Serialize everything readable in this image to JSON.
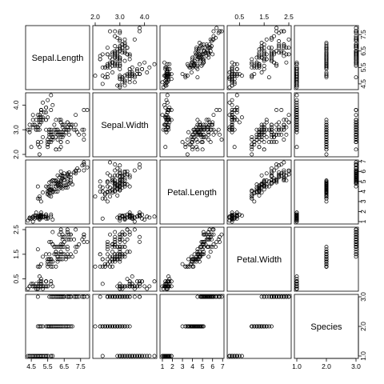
{
  "chart_data": {
    "type": "scatter",
    "variables": [
      "Sepal.Length",
      "Sepal.Width",
      "Petal.Length",
      "Petal.Width",
      "Species"
    ],
    "ranges": [
      [
        4.3,
        7.9
      ],
      [
        2.0,
        4.4
      ],
      [
        1.0,
        6.9
      ],
      [
        0.1,
        2.5
      ],
      [
        1,
        3
      ]
    ],
    "ticks": [
      [
        "4.5",
        "5.5",
        "6.5",
        "7.5"
      ],
      [
        "2.0",
        "3.0",
        "4.0"
      ],
      [
        "1",
        "2",
        "3",
        "4",
        "5",
        "6",
        "7"
      ],
      [
        "0.5",
        "1.5",
        "2.5"
      ],
      [
        "1.0",
        "2.0",
        "3.0"
      ]
    ],
    "tick_values": [
      [
        4.5,
        5.5,
        6.5,
        7.5
      ],
      [
        2.0,
        3.0,
        4.0
      ],
      [
        1,
        2,
        3,
        4,
        5,
        6,
        7
      ],
      [
        0.5,
        1.5,
        2.5
      ],
      [
        1.0,
        2.0,
        3.0
      ]
    ],
    "data": [
      [
        5.1,
        3.5,
        1.4,
        0.2,
        1
      ],
      [
        4.9,
        3.0,
        1.4,
        0.2,
        1
      ],
      [
        4.7,
        3.2,
        1.3,
        0.2,
        1
      ],
      [
        4.6,
        3.1,
        1.5,
        0.2,
        1
      ],
      [
        5.0,
        3.6,
        1.4,
        0.2,
        1
      ],
      [
        5.4,
        3.9,
        1.7,
        0.4,
        1
      ],
      [
        4.6,
        3.4,
        1.4,
        0.3,
        1
      ],
      [
        5.0,
        3.4,
        1.5,
        0.2,
        1
      ],
      [
        4.4,
        2.9,
        1.4,
        0.2,
        1
      ],
      [
        4.9,
        3.1,
        1.5,
        0.1,
        1
      ],
      [
        5.4,
        3.7,
        1.5,
        0.2,
        1
      ],
      [
        4.8,
        3.4,
        1.6,
        0.2,
        1
      ],
      [
        4.8,
        3.0,
        1.4,
        0.1,
        1
      ],
      [
        4.3,
        3.0,
        1.1,
        0.1,
        1
      ],
      [
        5.8,
        4.0,
        1.2,
        0.2,
        1
      ],
      [
        5.7,
        4.4,
        1.5,
        0.4,
        1
      ],
      [
        5.4,
        3.9,
        1.3,
        0.4,
        1
      ],
      [
        5.1,
        3.5,
        1.4,
        0.3,
        1
      ],
      [
        5.7,
        3.8,
        1.7,
        0.3,
        1
      ],
      [
        5.1,
        3.8,
        1.5,
        0.3,
        1
      ],
      [
        5.4,
        3.4,
        1.7,
        0.2,
        1
      ],
      [
        5.1,
        3.7,
        1.5,
        0.4,
        1
      ],
      [
        4.6,
        3.6,
        1.0,
        0.2,
        1
      ],
      [
        5.1,
        3.3,
        1.7,
        0.5,
        1
      ],
      [
        4.8,
        3.4,
        1.9,
        0.2,
        1
      ],
      [
        5.0,
        3.0,
        1.6,
        0.2,
        1
      ],
      [
        5.0,
        3.4,
        1.6,
        0.4,
        1
      ],
      [
        5.2,
        3.5,
        1.5,
        0.2,
        1
      ],
      [
        5.2,
        3.4,
        1.4,
        0.2,
        1
      ],
      [
        4.7,
        3.2,
        1.6,
        0.2,
        1
      ],
      [
        4.8,
        3.1,
        1.6,
        0.2,
        1
      ],
      [
        5.4,
        3.4,
        1.5,
        0.4,
        1
      ],
      [
        5.2,
        4.1,
        1.5,
        0.1,
        1
      ],
      [
        5.5,
        4.2,
        1.4,
        0.2,
        1
      ],
      [
        4.9,
        3.1,
        1.5,
        0.2,
        1
      ],
      [
        5.0,
        3.2,
        1.2,
        0.2,
        1
      ],
      [
        5.5,
        3.5,
        1.3,
        0.2,
        1
      ],
      [
        4.9,
        3.6,
        1.4,
        0.1,
        1
      ],
      [
        4.4,
        3.0,
        1.3,
        0.2,
        1
      ],
      [
        5.1,
        3.4,
        1.5,
        0.2,
        1
      ],
      [
        5.0,
        3.5,
        1.3,
        0.3,
        1
      ],
      [
        4.5,
        2.3,
        1.3,
        0.3,
        1
      ],
      [
        4.4,
        3.2,
        1.3,
        0.2,
        1
      ],
      [
        5.0,
        3.5,
        1.6,
        0.6,
        1
      ],
      [
        5.1,
        3.8,
        1.9,
        0.4,
        1
      ],
      [
        4.8,
        3.0,
        1.4,
        0.3,
        1
      ],
      [
        5.1,
        3.8,
        1.6,
        0.2,
        1
      ],
      [
        4.6,
        3.2,
        1.4,
        0.2,
        1
      ],
      [
        5.3,
        3.7,
        1.5,
        0.2,
        1
      ],
      [
        5.0,
        3.3,
        1.4,
        0.2,
        1
      ],
      [
        7.0,
        3.2,
        4.7,
        1.4,
        2
      ],
      [
        6.4,
        3.2,
        4.5,
        1.5,
        2
      ],
      [
        6.9,
        3.1,
        4.9,
        1.5,
        2
      ],
      [
        5.5,
        2.3,
        4.0,
        1.3,
        2
      ],
      [
        6.5,
        2.8,
        4.6,
        1.5,
        2
      ],
      [
        5.7,
        2.8,
        4.5,
        1.3,
        2
      ],
      [
        6.3,
        3.3,
        4.7,
        1.6,
        2
      ],
      [
        4.9,
        2.4,
        3.3,
        1.0,
        2
      ],
      [
        6.6,
        2.9,
        4.6,
        1.3,
        2
      ],
      [
        5.2,
        2.7,
        3.9,
        1.4,
        2
      ],
      [
        5.0,
        2.0,
        3.5,
        1.0,
        2
      ],
      [
        5.9,
        3.0,
        4.2,
        1.5,
        2
      ],
      [
        6.0,
        2.2,
        4.0,
        1.0,
        2
      ],
      [
        6.1,
        2.9,
        4.7,
        1.4,
        2
      ],
      [
        5.6,
        2.9,
        3.6,
        1.3,
        2
      ],
      [
        6.7,
        3.1,
        4.4,
        1.4,
        2
      ],
      [
        5.6,
        3.0,
        4.5,
        1.5,
        2
      ],
      [
        5.8,
        2.7,
        4.1,
        1.0,
        2
      ],
      [
        6.2,
        2.2,
        4.5,
        1.5,
        2
      ],
      [
        5.6,
        2.5,
        3.9,
        1.1,
        2
      ],
      [
        5.9,
        3.2,
        4.8,
        1.8,
        2
      ],
      [
        6.1,
        2.8,
        4.0,
        1.3,
        2
      ],
      [
        6.3,
        2.5,
        4.9,
        1.5,
        2
      ],
      [
        6.1,
        2.8,
        4.7,
        1.2,
        2
      ],
      [
        6.4,
        2.9,
        4.3,
        1.3,
        2
      ],
      [
        6.6,
        3.0,
        4.4,
        1.4,
        2
      ],
      [
        6.8,
        2.8,
        4.8,
        1.4,
        2
      ],
      [
        6.7,
        3.0,
        5.0,
        1.7,
        2
      ],
      [
        6.0,
        2.9,
        4.5,
        1.5,
        2
      ],
      [
        5.7,
        2.6,
        3.5,
        1.0,
        2
      ],
      [
        5.5,
        2.4,
        3.8,
        1.1,
        2
      ],
      [
        5.5,
        2.4,
        3.7,
        1.0,
        2
      ],
      [
        5.8,
        2.7,
        3.9,
        1.2,
        2
      ],
      [
        6.0,
        2.7,
        5.1,
        1.6,
        2
      ],
      [
        5.4,
        3.0,
        4.5,
        1.5,
        2
      ],
      [
        6.0,
        3.4,
        4.5,
        1.6,
        2
      ],
      [
        6.7,
        3.1,
        4.7,
        1.5,
        2
      ],
      [
        6.3,
        2.3,
        4.4,
        1.3,
        2
      ],
      [
        5.6,
        3.0,
        4.1,
        1.3,
        2
      ],
      [
        5.5,
        2.5,
        4.0,
        1.3,
        2
      ],
      [
        5.5,
        2.6,
        4.4,
        1.2,
        2
      ],
      [
        6.1,
        3.0,
        4.6,
        1.4,
        2
      ],
      [
        5.8,
        2.6,
        4.0,
        1.2,
        2
      ],
      [
        5.0,
        2.3,
        3.3,
        1.0,
        2
      ],
      [
        5.6,
        2.7,
        4.2,
        1.3,
        2
      ],
      [
        5.7,
        3.0,
        4.2,
        1.2,
        2
      ],
      [
        5.7,
        2.9,
        4.2,
        1.3,
        2
      ],
      [
        6.2,
        2.9,
        4.3,
        1.3,
        2
      ],
      [
        5.1,
        2.5,
        3.0,
        1.1,
        2
      ],
      [
        5.7,
        2.8,
        4.1,
        1.3,
        2
      ],
      [
        6.3,
        3.3,
        6.0,
        2.5,
        3
      ],
      [
        5.8,
        2.7,
        5.1,
        1.9,
        3
      ],
      [
        7.1,
        3.0,
        5.9,
        2.1,
        3
      ],
      [
        6.3,
        2.9,
        5.6,
        1.8,
        3
      ],
      [
        6.5,
        3.0,
        5.8,
        2.2,
        3
      ],
      [
        7.6,
        3.0,
        6.6,
        2.1,
        3
      ],
      [
        4.9,
        2.5,
        4.5,
        1.7,
        3
      ],
      [
        7.3,
        2.9,
        6.3,
        1.8,
        3
      ],
      [
        6.7,
        2.5,
        5.8,
        1.8,
        3
      ],
      [
        7.2,
        3.6,
        6.1,
        2.5,
        3
      ],
      [
        6.5,
        3.2,
        5.1,
        2.0,
        3
      ],
      [
        6.4,
        2.7,
        5.3,
        1.9,
        3
      ],
      [
        6.8,
        3.0,
        5.5,
        2.1,
        3
      ],
      [
        5.7,
        2.5,
        5.0,
        2.0,
        3
      ],
      [
        5.8,
        2.8,
        5.1,
        2.4,
        3
      ],
      [
        6.4,
        3.2,
        5.3,
        2.3,
        3
      ],
      [
        6.5,
        3.0,
        5.5,
        1.8,
        3
      ],
      [
        7.7,
        3.8,
        6.7,
        2.2,
        3
      ],
      [
        7.7,
        2.6,
        6.9,
        2.3,
        3
      ],
      [
        6.0,
        2.2,
        5.0,
        1.5,
        3
      ],
      [
        6.9,
        3.2,
        5.7,
        2.3,
        3
      ],
      [
        5.6,
        2.8,
        4.9,
        2.0,
        3
      ],
      [
        7.7,
        2.8,
        6.7,
        2.0,
        3
      ],
      [
        6.3,
        2.7,
        4.9,
        1.8,
        3
      ],
      [
        6.7,
        3.3,
        5.7,
        2.1,
        3
      ],
      [
        7.2,
        3.2,
        6.0,
        1.8,
        3
      ],
      [
        6.2,
        2.8,
        4.8,
        1.8,
        3
      ],
      [
        6.1,
        3.0,
        4.9,
        1.8,
        3
      ],
      [
        6.4,
        2.8,
        5.6,
        2.1,
        3
      ],
      [
        7.2,
        3.0,
        5.8,
        1.6,
        3
      ],
      [
        7.4,
        2.8,
        6.1,
        1.9,
        3
      ],
      [
        7.9,
        3.8,
        6.4,
        2.0,
        3
      ],
      [
        6.4,
        2.8,
        5.6,
        2.2,
        3
      ],
      [
        6.3,
        2.8,
        5.1,
        1.5,
        3
      ],
      [
        6.1,
        2.6,
        5.6,
        1.4,
        3
      ],
      [
        7.7,
        3.0,
        6.1,
        2.3,
        3
      ],
      [
        6.3,
        3.4,
        5.6,
        2.4,
        3
      ],
      [
        6.4,
        3.1,
        5.5,
        1.8,
        3
      ],
      [
        6.0,
        3.0,
        4.8,
        1.8,
        3
      ],
      [
        6.9,
        3.1,
        5.4,
        2.1,
        3
      ],
      [
        6.7,
        3.1,
        5.6,
        2.4,
        3
      ],
      [
        6.9,
        3.1,
        5.1,
        2.3,
        3
      ],
      [
        5.8,
        2.7,
        5.1,
        1.9,
        3
      ],
      [
        6.8,
        3.2,
        5.9,
        2.3,
        3
      ],
      [
        6.7,
        3.3,
        5.7,
        2.5,
        3
      ],
      [
        6.7,
        3.0,
        5.2,
        2.3,
        3
      ],
      [
        6.3,
        2.5,
        5.0,
        1.9,
        3
      ],
      [
        6.5,
        3.0,
        5.2,
        2.0,
        3
      ],
      [
        6.2,
        3.4,
        5.4,
        2.3,
        3
      ],
      [
        5.9,
        3.0,
        5.1,
        1.8,
        3
      ]
    ]
  }
}
